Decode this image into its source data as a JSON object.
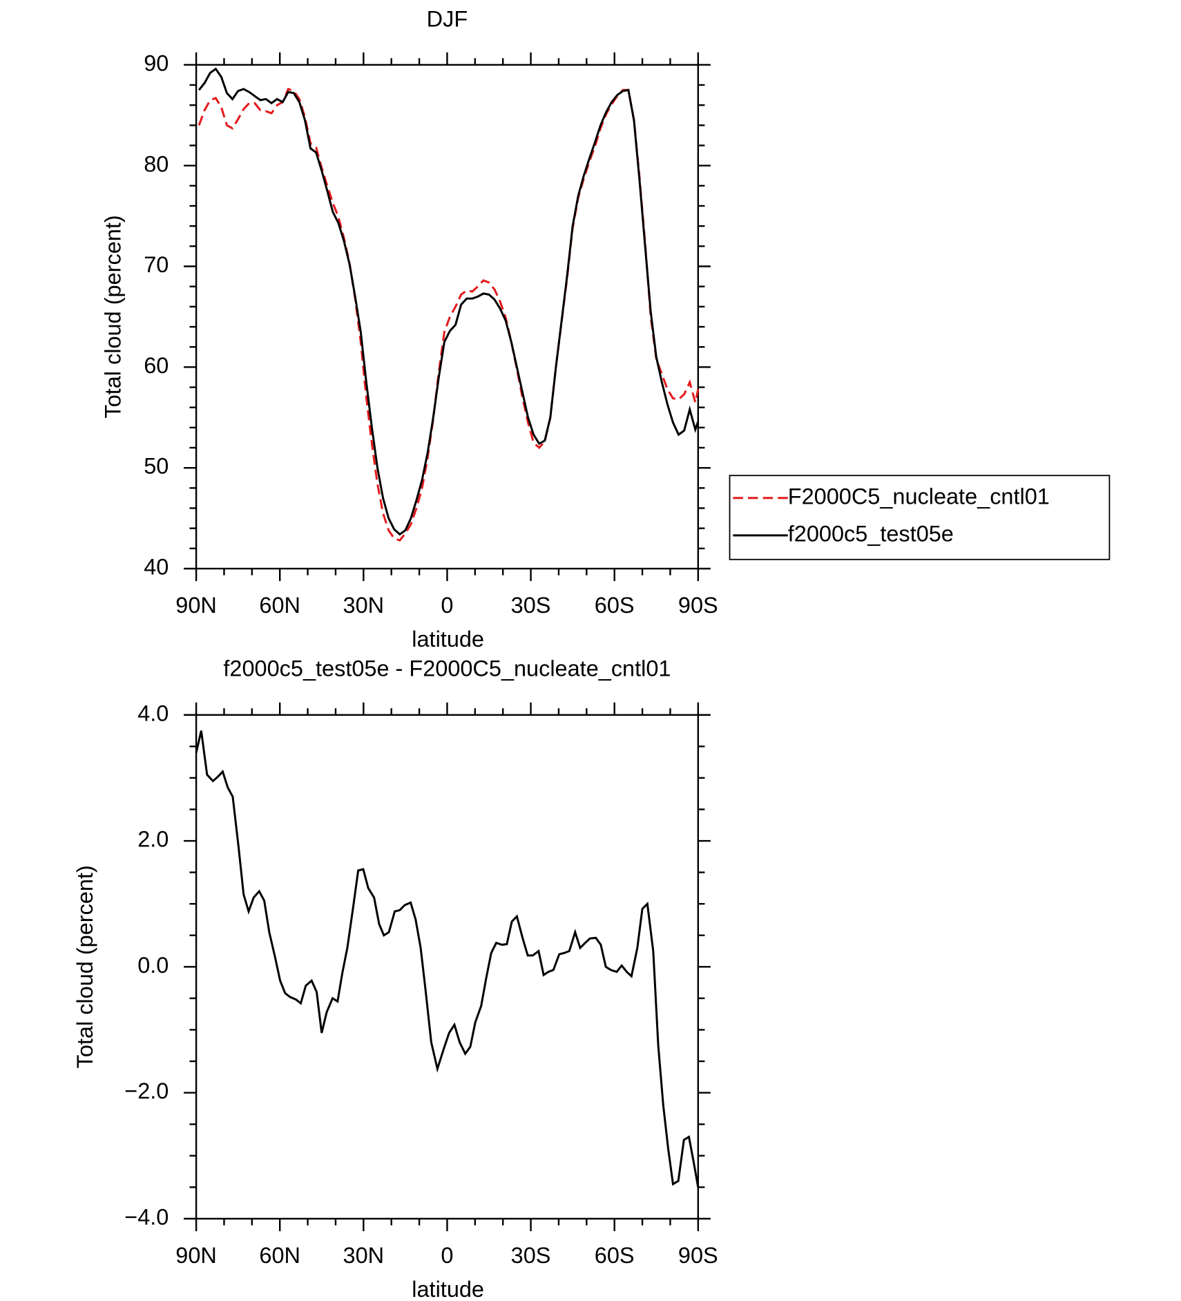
{
  "chart_data": [
    {
      "type": "line",
      "title": "DJF",
      "x_label": "latitude",
      "y_label": "Total cloud (percent)",
      "xlim": [
        90,
        -90
      ],
      "xticks": [
        {
          "value": 90,
          "label": "90N"
        },
        {
          "value": 60,
          "label": "60N"
        },
        {
          "value": 30,
          "label": "30N"
        },
        0,
        {
          "value": -30,
          "label": "30S"
        },
        {
          "value": -60,
          "label": "60S"
        },
        {
          "value": -90,
          "label": "90S"
        }
      ],
      "ylim": [
        40,
        90
      ],
      "yticks": [
        40,
        50,
        60,
        70,
        80,
        90
      ],
      "minor_divisions": {
        "x": 3,
        "y": 5
      },
      "legend": "outside-right-bottom",
      "x": [
        89,
        87,
        85,
        83,
        81,
        79,
        77,
        75,
        73,
        71,
        69,
        67,
        65,
        63,
        61,
        59,
        57,
        55,
        53,
        51,
        49,
        47,
        45,
        43,
        41,
        39,
        37,
        35,
        33,
        31,
        29,
        27,
        25,
        23,
        21,
        19,
        17,
        15,
        13,
        11,
        9,
        7,
        5,
        3,
        1,
        -1,
        -3,
        -5,
        -7,
        -9,
        -11,
        -13,
        -15,
        -17,
        -19,
        -21,
        -23,
        -25,
        -27,
        -29,
        -31,
        -33,
        -35,
        -37,
        -39,
        -41,
        -43,
        -45,
        -47,
        -49,
        -51,
        -53,
        -55,
        -57,
        -59,
        -61,
        -63,
        -65,
        -67,
        -69,
        -71,
        -73,
        -75,
        -77,
        -79,
        -81,
        -83,
        -85,
        -87,
        -89,
        -90
      ],
      "series": [
        {
          "name": "F2000C5_nucleate_cntl01",
          "color": "#e41a1c",
          "dash": "dashed",
          "values": [
            84.0,
            85.5,
            86.5,
            86.7,
            85.8,
            84.0,
            83.7,
            84.6,
            85.6,
            86.2,
            86.2,
            85.5,
            85.4,
            85.2,
            86.0,
            86.3,
            87.6,
            87.4,
            86.6,
            84.8,
            82.2,
            81.8,
            79.8,
            78.0,
            76.3,
            74.9,
            72.8,
            70.3,
            66.8,
            62.5,
            57.0,
            52.4,
            48.4,
            45.5,
            43.8,
            43.0,
            42.8,
            43.5,
            44.4,
            46.0,
            48.0,
            51.0,
            54.8,
            59.5,
            63.5,
            65.0,
            66.0,
            67.2,
            67.6,
            67.5,
            68.0,
            68.6,
            68.4,
            67.7,
            66.5,
            64.9,
            62.5,
            59.8,
            57.0,
            54.5,
            52.5,
            52.0,
            52.6,
            55.0,
            60.0,
            64.4,
            68.8,
            73.8,
            76.8,
            78.7,
            80.4,
            81.9,
            83.7,
            85.1,
            86.1,
            86.9,
            87.5,
            87.5,
            84.5,
            78.8,
            72.3,
            65.0,
            60.8,
            59.3,
            57.8,
            56.9,
            56.8,
            57.3,
            58.5,
            56.5,
            57.8
          ]
        },
        {
          "name": "f2000c5_test05e",
          "color": "#000000",
          "dash": "solid",
          "values": [
            87.5,
            88.2,
            89.2,
            89.6,
            88.8,
            87.2,
            86.6,
            87.4,
            87.6,
            87.3,
            86.9,
            86.5,
            86.6,
            86.2,
            86.6,
            86.3,
            87.3,
            87.2,
            86.3,
            84.5,
            81.7,
            81.3,
            79.5,
            77.5,
            75.4,
            74.3,
            72.5,
            70.2,
            67.0,
            63.5,
            58.5,
            54.0,
            50.0,
            47.0,
            45.0,
            43.9,
            43.4,
            43.8,
            45.0,
            46.8,
            48.8,
            51.5,
            55.0,
            59.0,
            62.5,
            63.6,
            64.2,
            66.2,
            66.8,
            66.8,
            67.0,
            67.3,
            67.2,
            66.7,
            65.8,
            64.6,
            62.5,
            60.0,
            57.5,
            55.0,
            53.3,
            52.4,
            52.7,
            55.0,
            60.0,
            64.5,
            69.0,
            74.0,
            77.0,
            79.0,
            80.7,
            82.3,
            84.0,
            85.3,
            86.3,
            87.0,
            87.4,
            87.5,
            84.5,
            78.5,
            72.0,
            65.5,
            61.0,
            58.5,
            56.3,
            54.5,
            53.3,
            53.7,
            55.8,
            53.8,
            54.6
          ]
        }
      ]
    },
    {
      "type": "line",
      "title": "f2000c5_test05e - F2000C5_nucleate_cntl01",
      "x_label": "latitude",
      "y_label": "Total cloud (percent)",
      "xlim": [
        90,
        -90
      ],
      "xticks": [
        {
          "value": 90,
          "label": "90N"
        },
        {
          "value": 60,
          "label": "60N"
        },
        {
          "value": 30,
          "label": "30N"
        },
        0,
        {
          "value": -30,
          "label": "30S"
        },
        {
          "value": -60,
          "label": "60S"
        },
        {
          "value": -90,
          "label": "90S"
        }
      ],
      "ylim": [
        -4,
        4
      ],
      "yticks": [
        {
          "value": -4,
          "label": "−4.0"
        },
        {
          "value": -2,
          "label": "−2.0"
        },
        {
          "value": 0,
          "label": "0.0"
        },
        {
          "value": 2,
          "label": "2.0"
        },
        {
          "value": 4,
          "label": "4.0"
        }
      ],
      "minor_divisions": {
        "x": 3,
        "y": 4
      },
      "x": [
        90,
        88.2,
        86.1,
        84,
        82.2,
        80.5,
        78.7,
        76.9,
        74.8,
        73,
        71.2,
        69.4,
        67.4,
        65.6,
        63.8,
        61.7,
        59.9,
        58.1,
        56.3,
        54.2,
        52.5,
        50.7,
        48.6,
        46.8,
        45,
        43.2,
        41.1,
        39.3,
        37.6,
        35.8,
        33.7,
        31.9,
        30.1,
        28.3,
        26.2,
        24.4,
        22.7,
        20.9,
        18.8,
        17,
        15.2,
        13.1,
        11.3,
        9.5,
        7.8,
        5.7,
        3.5,
        1.2,
        -0.7,
        -2.6,
        -4.5,
        -6.5,
        -8.3,
        -10.1,
        -12.2,
        -14,
        -15.8,
        -17.6,
        -19.7,
        -21.4,
        -23.2,
        -25,
        -27.1,
        -28.9,
        -30.7,
        -32.8,
        -34.6,
        -36.3,
        -38.1,
        -40.2,
        -42,
        -43.8,
        -45.9,
        -47.7,
        -49.5,
        -51.2,
        -53.3,
        -55.1,
        -56.9,
        -58.7,
        -60.8,
        -62.6,
        -64.4,
        -66.1,
        -68.2,
        -70,
        -71.8,
        -73.9,
        -75.7,
        -77.5,
        -79.3,
        -81,
        -82.9,
        -84.9,
        -86.7,
        -88.4,
        -90
      ],
      "series": [
        {
          "color": "#000000",
          "dash": "solid",
          "values": [
            3.4,
            3.75,
            3.05,
            2.95,
            3.02,
            3.1,
            2.85,
            2.7,
            1.9,
            1.15,
            0.88,
            1.1,
            1.2,
            1.05,
            0.55,
            0.15,
            -0.22,
            -0.42,
            -0.48,
            -0.52,
            -0.58,
            -0.3,
            -0.22,
            -0.4,
            -1.05,
            -0.72,
            -0.5,
            -0.55,
            -0.1,
            0.3,
            0.95,
            1.53,
            1.55,
            1.25,
            1.1,
            0.68,
            0.5,
            0.55,
            0.88,
            0.9,
            0.98,
            1.02,
            0.75,
            0.3,
            -0.35,
            -1.2,
            -1.62,
            -1.3,
            -1.05,
            -0.92,
            -1.2,
            -1.38,
            -1.27,
            -0.88,
            -0.62,
            -0.18,
            0.22,
            0.38,
            0.35,
            0.36,
            0.72,
            0.8,
            0.45,
            0.18,
            0.18,
            0.25,
            -0.13,
            -0.08,
            -0.05,
            0.2,
            0.22,
            0.25,
            0.55,
            0.3,
            0.38,
            0.45,
            0.46,
            0.35,
            0.0,
            -0.05,
            -0.08,
            0.02,
            -0.08,
            -0.15,
            0.3,
            0.92,
            1.0,
            0.25,
            -1.25,
            -2.2,
            -2.9,
            -3.45,
            -3.4,
            -2.75,
            -2.7,
            -3.1,
            -3.5
          ]
        }
      ]
    }
  ]
}
